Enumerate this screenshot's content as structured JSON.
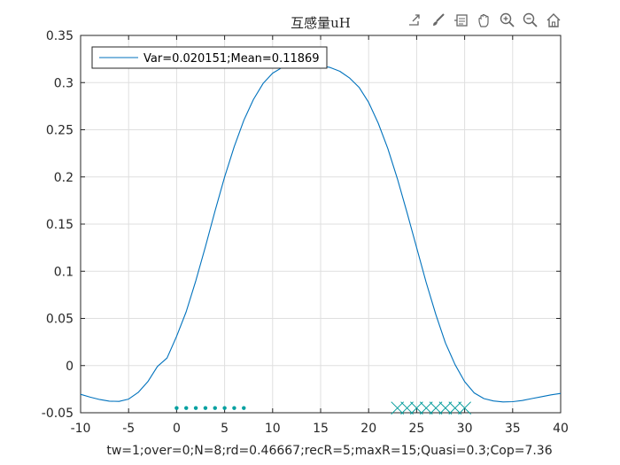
{
  "toolbar": {
    "buttons": [
      {
        "name": "export-icon"
      },
      {
        "name": "brush-icon"
      },
      {
        "name": "datatip-icon"
      },
      {
        "name": "pan-hand-icon"
      },
      {
        "name": "zoom-in-icon"
      },
      {
        "name": "zoom-out-icon"
      },
      {
        "name": "home-icon"
      }
    ]
  },
  "chart_data": {
    "type": "line",
    "title": "互感量uH",
    "xlabel": "tw=1;over=0;N=8;rd=0.46667;recR=5;maxR=15;Quasi=0.3;Cop=7.36",
    "ylabel": "",
    "xlim": [
      -10,
      40
    ],
    "ylim": [
      -0.05,
      0.35
    ],
    "xticks": [
      -10,
      -5,
      0,
      5,
      10,
      15,
      20,
      25,
      30,
      35,
      40
    ],
    "xtick_labels": [
      "-10",
      "-5",
      "0",
      "5",
      "10",
      "15",
      "20",
      "25",
      "30",
      "35",
      "40"
    ],
    "yticks": [
      -0.05,
      0,
      0.05,
      0.1,
      0.15,
      0.2,
      0.25,
      0.3,
      0.35
    ],
    "ytick_labels": [
      "-0.05",
      "0",
      "0.05",
      "0.1",
      "0.15",
      "0.2",
      "0.25",
      "0.3",
      "0.35"
    ],
    "grid": true,
    "legend": {
      "position": "top-left",
      "entries": [
        "Var=0.020151;Mean=0.11869"
      ]
    },
    "series": [
      {
        "name": "Var=0.020151;Mean=0.11869",
        "color": "#0072BD",
        "x": [
          -10,
          -9,
          -8,
          -7,
          -6,
          -5,
          -4,
          -3,
          -2,
          -1,
          0,
          1,
          2,
          3,
          4,
          5,
          6,
          7,
          8,
          9,
          10,
          11,
          12,
          13,
          14,
          15,
          16,
          17,
          18,
          19,
          20,
          21,
          22,
          23,
          24,
          25,
          26,
          27,
          28,
          29,
          30,
          31,
          32,
          33,
          34,
          35,
          36,
          37,
          38,
          39,
          40
        ],
        "y": [
          -0.0305,
          -0.0335,
          -0.036,
          -0.0377,
          -0.038,
          -0.0355,
          -0.0285,
          -0.017,
          -0.001,
          0.008,
          0.031,
          0.057,
          0.09,
          0.126,
          0.164,
          0.2,
          0.232,
          0.26,
          0.282,
          0.299,
          0.31,
          0.316,
          0.319,
          0.32,
          0.3195,
          0.318,
          0.316,
          0.312,
          0.305,
          0.295,
          0.279,
          0.257,
          0.23,
          0.198,
          0.162,
          0.125,
          0.088,
          0.054,
          0.024,
          0.001,
          -0.017,
          -0.029,
          -0.035,
          -0.0375,
          -0.0385,
          -0.0383,
          -0.037,
          -0.035,
          -0.033,
          -0.031,
          -0.0295
        ]
      }
    ],
    "markers": [
      {
        "type": "dot",
        "color": "#00A0A0",
        "x": [
          0,
          1,
          2,
          3,
          4,
          5,
          6,
          7
        ],
        "y": [
          -0.045,
          -0.045,
          -0.045,
          -0.045,
          -0.045,
          -0.045,
          -0.045,
          -0.045
        ]
      },
      {
        "type": "x",
        "color": "#009B9B",
        "x": [
          23,
          24,
          25,
          26,
          27,
          28,
          29,
          30
        ],
        "y": [
          -0.045,
          -0.045,
          -0.045,
          -0.045,
          -0.045,
          -0.045,
          -0.045,
          -0.045
        ]
      }
    ]
  }
}
